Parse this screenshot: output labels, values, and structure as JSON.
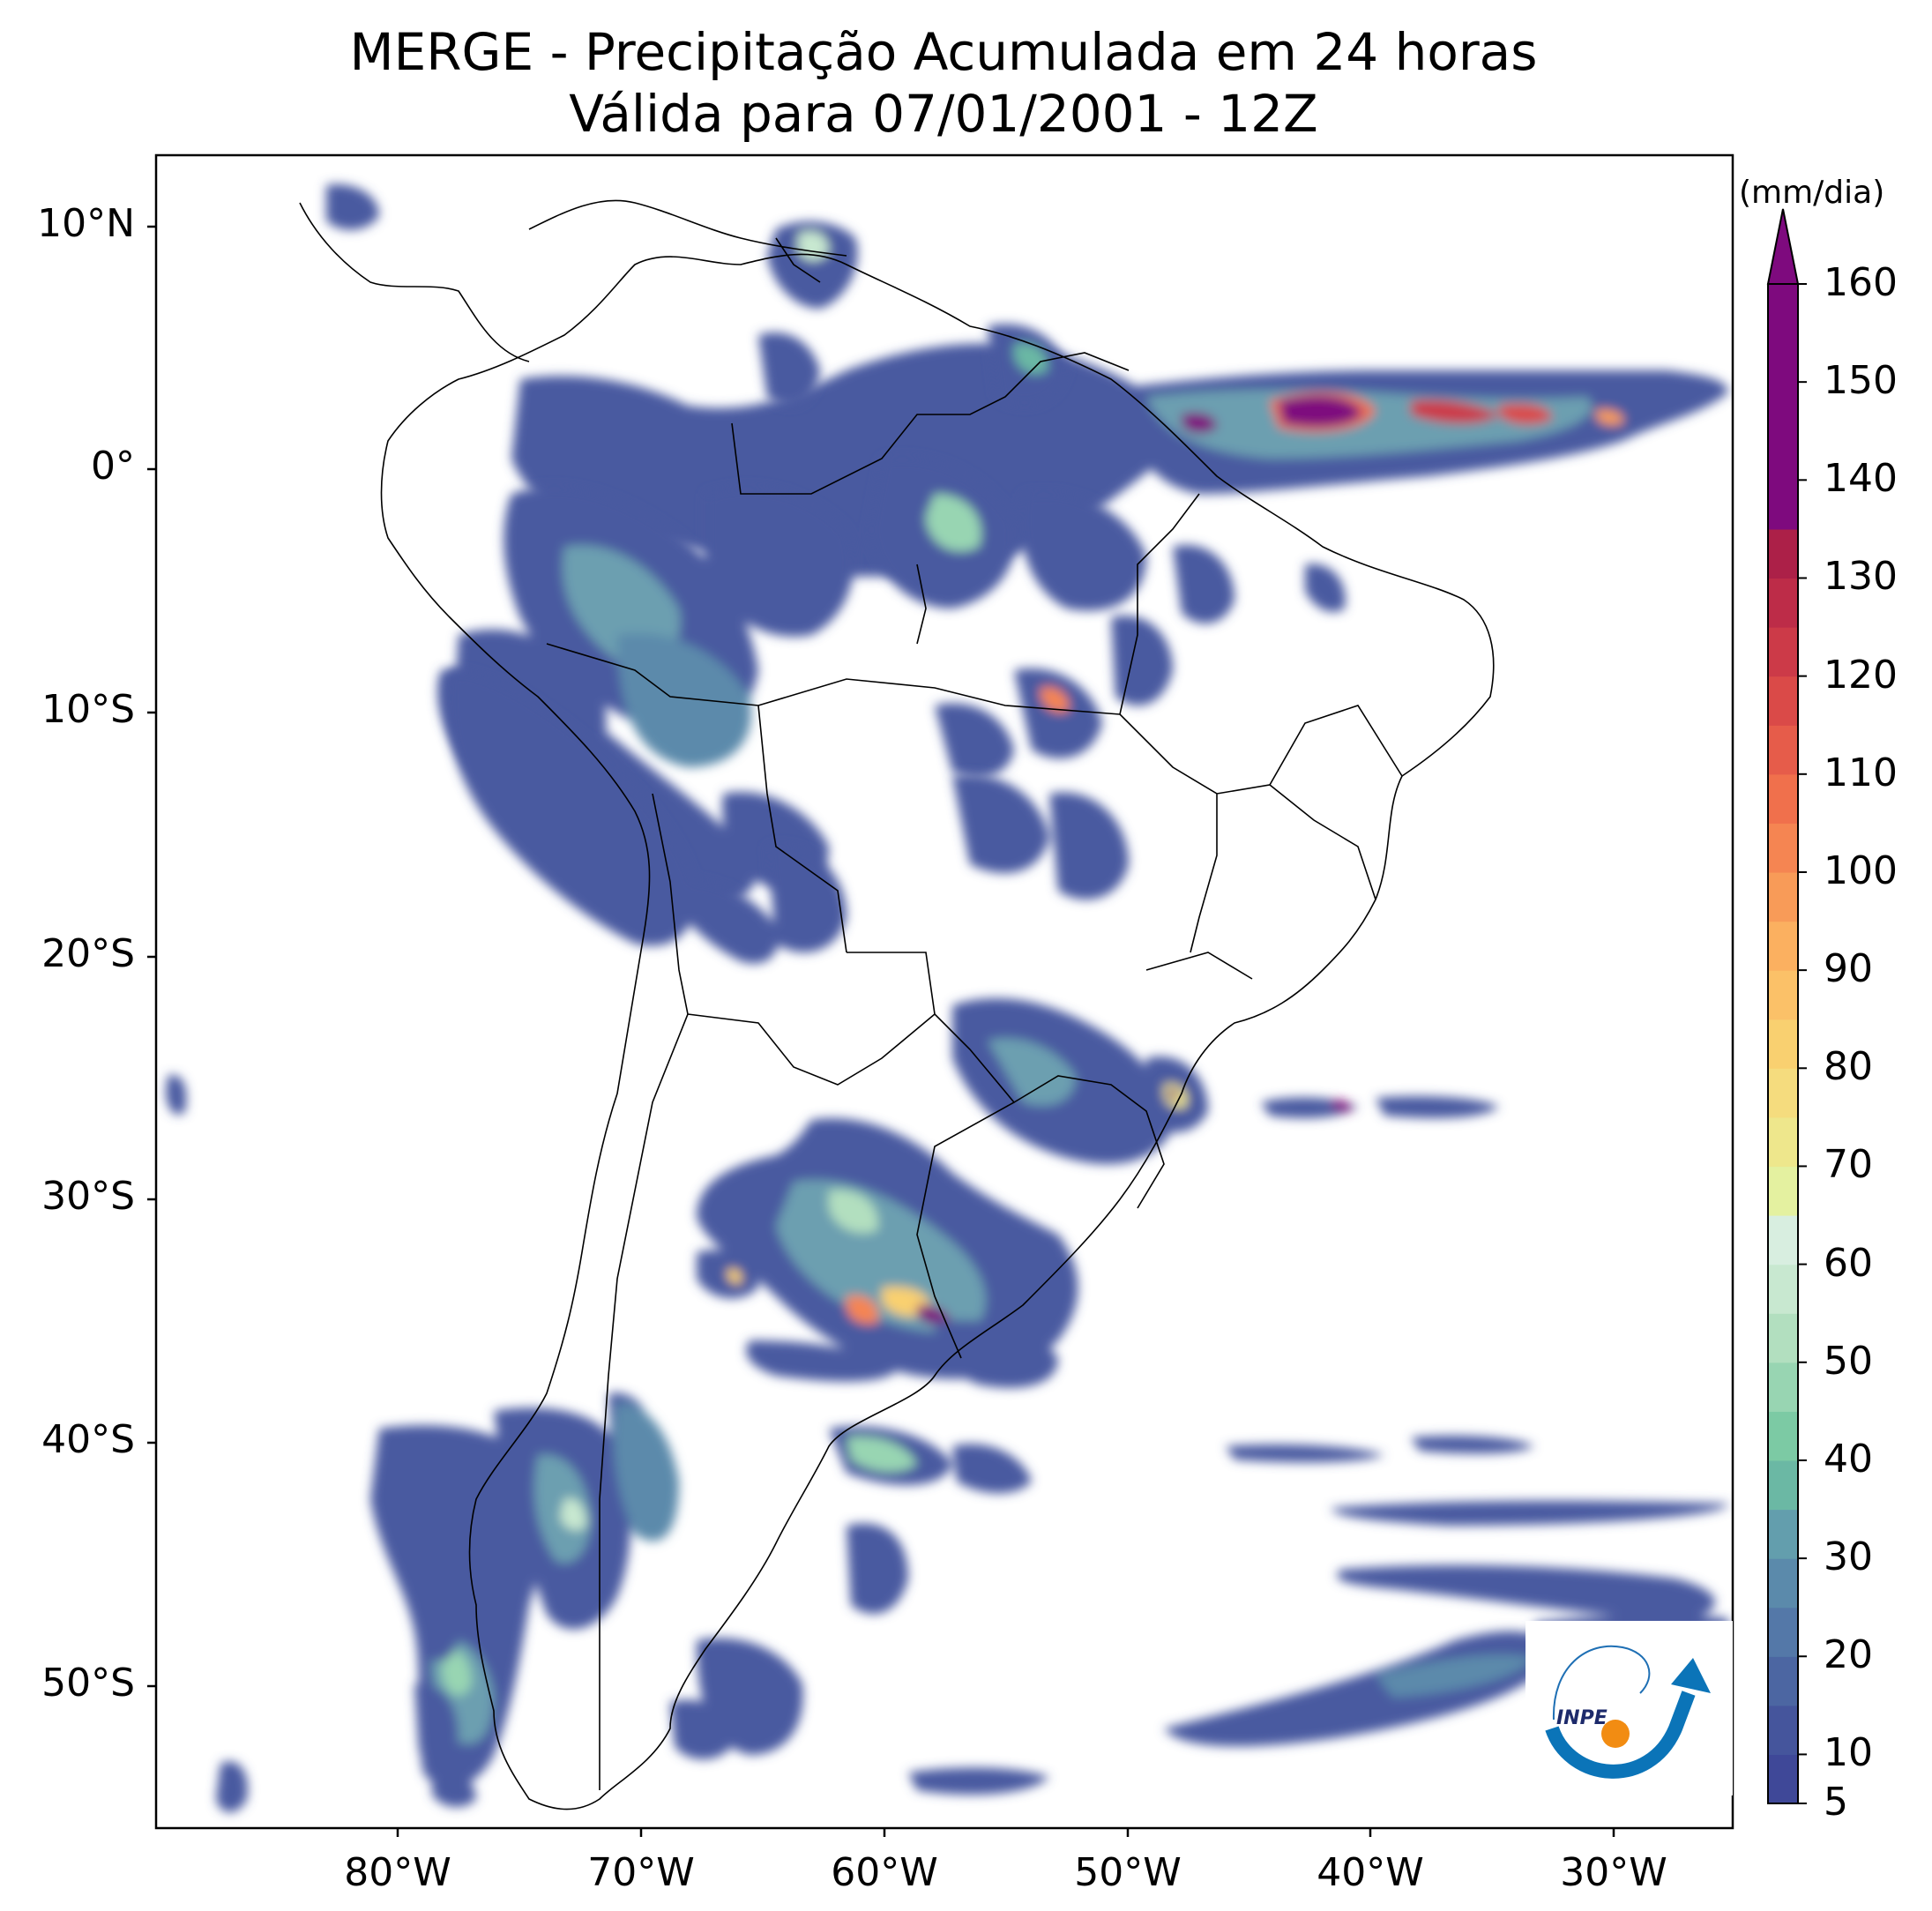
{
  "title": {
    "line1": "MERGE - Precipitação Acumulada em 24 horas",
    "line2": "Válida para 07/01/2001 - 12Z"
  },
  "axes": {
    "lat_labels": [
      "10°N",
      "0°",
      "10°S",
      "20°S",
      "30°S",
      "40°S",
      "50°S"
    ],
    "lon_labels": [
      "80°W",
      "70°W",
      "60°W",
      "50°W",
      "40°W",
      "30°W"
    ]
  },
  "colorbar": {
    "unit": "(mm/dia)",
    "ticks": [
      "160",
      "150",
      "140",
      "130",
      "120",
      "110",
      "100",
      "90",
      "80",
      "70",
      "60",
      "50",
      "40",
      "30",
      "20",
      "10",
      "5"
    ],
    "levels": [
      5,
      10,
      15,
      20,
      25,
      30,
      35,
      40,
      45,
      50,
      55,
      60,
      65,
      70,
      75,
      80,
      85,
      90,
      95,
      100,
      105,
      110,
      115,
      120,
      125,
      130,
      135,
      140,
      145,
      150,
      155,
      160
    ],
    "colors": [
      "#3f4898",
      "#45559c",
      "#4c66a2",
      "#5478a8",
      "#5b8aab",
      "#639ead",
      "#6bb8a4",
      "#7ccaa4",
      "#98d5b2",
      "#b2dfbf",
      "#c8e8d0",
      "#d8eee0",
      "#e4f1a0",
      "#eee78c",
      "#f5dc7e",
      "#f9d070",
      "#fbc168",
      "#fbb060",
      "#f89b58",
      "#f58552",
      "#f0704c",
      "#e65c4a",
      "#da4a48",
      "#cc3a48",
      "#bd2c48",
      "#ac2048",
      "#7e0a7e"
    ],
    "over_color": "#7e0a7e"
  },
  "logo": {
    "text": "INPE"
  }
}
